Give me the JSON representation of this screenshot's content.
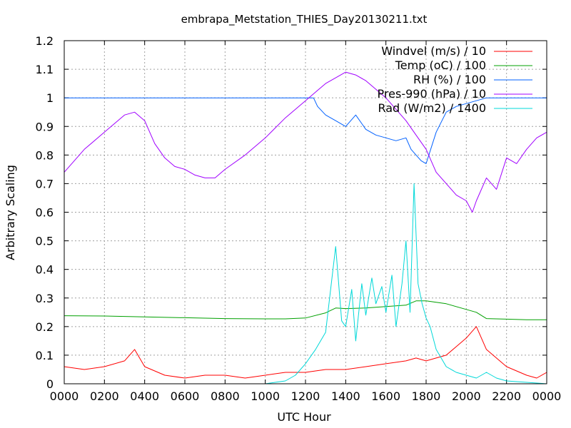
{
  "chart_data": {
    "type": "line",
    "title": "embrapa_Metstation_THIES_Day20130211.txt",
    "xlabel": "UTC Hour",
    "ylabel": "Arbitrary Scaling",
    "xlim": [
      0,
      2400
    ],
    "ylim": [
      0,
      1.2
    ],
    "grid": true,
    "legend_position": "top-right",
    "x_tick_labels": [
      "0000",
      "0200",
      "0400",
      "0600",
      "0800",
      "1000",
      "1200",
      "1400",
      "1600",
      "1800",
      "2000",
      "2200",
      "0000"
    ],
    "y_tick_labels": [
      "0",
      "0.1",
      "0.2",
      "0.3",
      "0.4",
      "0.5",
      "0.6",
      "0.7",
      "0.8",
      "0.9",
      "1",
      "1.1",
      "1.2"
    ],
    "series": [
      {
        "name": "Windvel (m/s) / 10",
        "color": "#ff0000",
        "x": [
          0,
          100,
          200,
          300,
          350,
          400,
          500,
          600,
          700,
          800,
          900,
          1000,
          1100,
          1200,
          1300,
          1400,
          1500,
          1600,
          1700,
          1750,
          1800,
          1900,
          1950,
          2000,
          2050,
          2100,
          2200,
          2300,
          2350,
          2400
        ],
        "y": [
          0.06,
          0.05,
          0.06,
          0.08,
          0.12,
          0.06,
          0.03,
          0.02,
          0.03,
          0.03,
          0.02,
          0.03,
          0.04,
          0.04,
          0.05,
          0.05,
          0.06,
          0.07,
          0.08,
          0.09,
          0.08,
          0.1,
          0.13,
          0.16,
          0.2,
          0.12,
          0.06,
          0.03,
          0.02,
          0.04
        ]
      },
      {
        "name": "Temp (oC) / 100",
        "color": "#00a000",
        "x": [
          0,
          200,
          400,
          600,
          800,
          1000,
          1100,
          1200,
          1300,
          1350,
          1400,
          1500,
          1600,
          1700,
          1750,
          1800,
          1900,
          2000,
          2050,
          2100,
          2200,
          2300,
          2400
        ],
        "y": [
          0.238,
          0.237,
          0.234,
          0.231,
          0.228,
          0.227,
          0.227,
          0.23,
          0.248,
          0.265,
          0.263,
          0.265,
          0.27,
          0.275,
          0.29,
          0.29,
          0.28,
          0.26,
          0.25,
          0.228,
          0.226,
          0.224,
          0.224
        ]
      },
      {
        "name": "RH (%) / 100",
        "color": "#0060ff",
        "x": [
          0,
          1200,
          1240,
          1260,
          1300,
          1350,
          1400,
          1450,
          1500,
          1550,
          1600,
          1650,
          1700,
          1725,
          1750,
          1775,
          1800,
          1850,
          1900,
          1950,
          2000,
          2100,
          2400
        ],
        "y": [
          1.0,
          1.0,
          1.0,
          0.97,
          0.94,
          0.92,
          0.9,
          0.94,
          0.89,
          0.87,
          0.86,
          0.85,
          0.86,
          0.82,
          0.8,
          0.78,
          0.77,
          0.88,
          0.95,
          0.97,
          0.98,
          1.0,
          1.0
        ]
      },
      {
        "name": "Pres-990 (hPa) / 10",
        "color": "#a000ff",
        "x": [
          0,
          100,
          200,
          250,
          300,
          350,
          400,
          450,
          500,
          550,
          600,
          650,
          700,
          750,
          800,
          900,
          1000,
          1100,
          1200,
          1250,
          1300,
          1350,
          1400,
          1450,
          1500,
          1550,
          1600,
          1650,
          1700,
          1750,
          1800,
          1850,
          1900,
          1950,
          2000,
          2030,
          2050,
          2100,
          2150,
          2200,
          2250,
          2300,
          2350,
          2400
        ],
        "y": [
          0.74,
          0.82,
          0.88,
          0.91,
          0.94,
          0.95,
          0.92,
          0.84,
          0.79,
          0.76,
          0.75,
          0.73,
          0.72,
          0.72,
          0.75,
          0.8,
          0.86,
          0.93,
          0.99,
          1.02,
          1.05,
          1.07,
          1.09,
          1.08,
          1.06,
          1.03,
          1.0,
          0.96,
          0.92,
          0.87,
          0.82,
          0.74,
          0.7,
          0.66,
          0.64,
          0.6,
          0.64,
          0.72,
          0.68,
          0.79,
          0.77,
          0.82,
          0.86,
          0.88
        ]
      },
      {
        "name": "Rad (W/m2) / 1400",
        "color": "#00d8d8",
        "x": [
          0,
          1000,
          1100,
          1150,
          1200,
          1250,
          1300,
          1320,
          1350,
          1380,
          1400,
          1430,
          1450,
          1480,
          1500,
          1530,
          1550,
          1580,
          1600,
          1630,
          1650,
          1680,
          1700,
          1720,
          1740,
          1760,
          1780,
          1800,
          1820,
          1850,
          1900,
          1950,
          2000,
          2050,
          2100,
          2150,
          2200,
          2400
        ],
        "y": [
          0.0,
          0.0,
          0.01,
          0.03,
          0.07,
          0.12,
          0.18,
          0.3,
          0.48,
          0.22,
          0.2,
          0.33,
          0.15,
          0.35,
          0.24,
          0.37,
          0.28,
          0.34,
          0.25,
          0.38,
          0.2,
          0.35,
          0.5,
          0.25,
          0.7,
          0.35,
          0.28,
          0.23,
          0.2,
          0.12,
          0.06,
          0.04,
          0.03,
          0.02,
          0.04,
          0.02,
          0.01,
          0.0
        ]
      }
    ]
  }
}
